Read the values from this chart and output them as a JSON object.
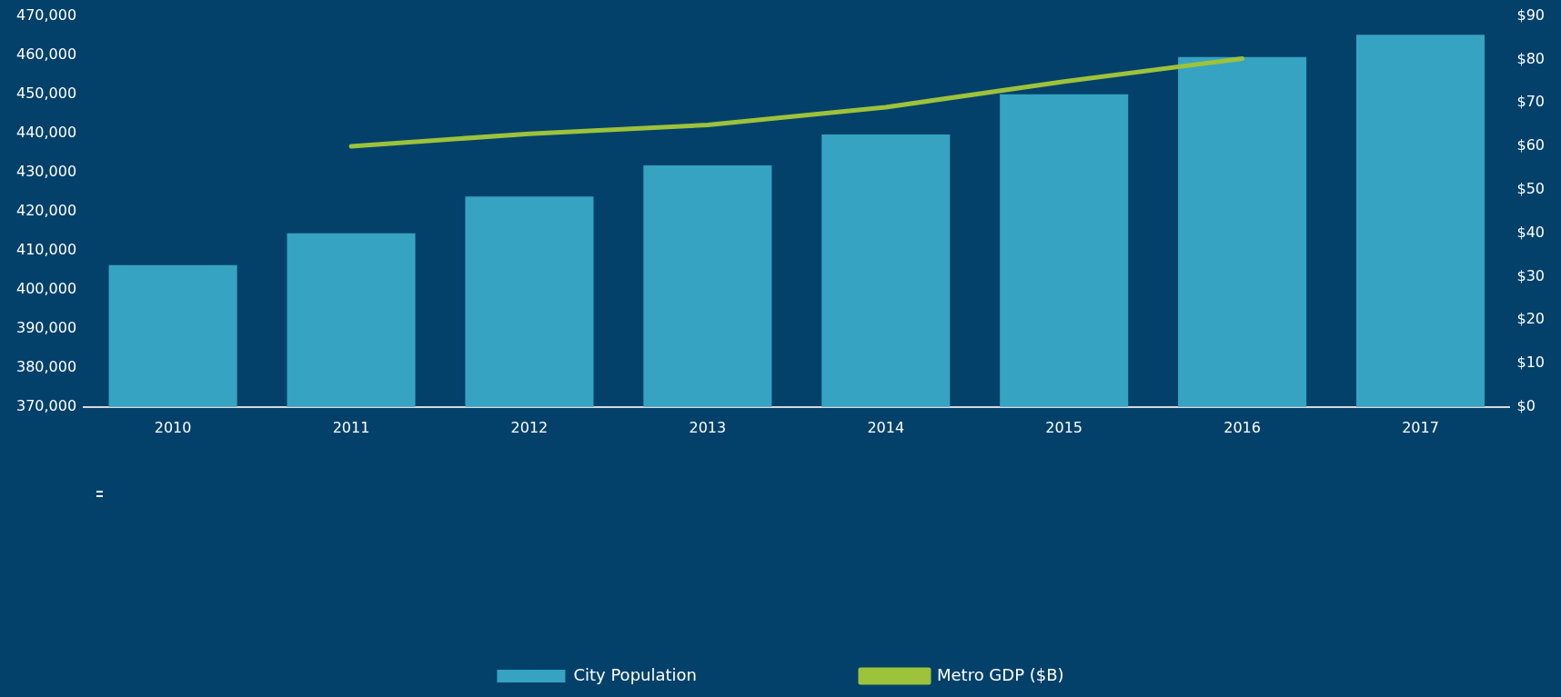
{
  "chart_data": {
    "type": "bar",
    "categories": [
      "2010",
      "2011",
      "2012",
      "2013",
      "2014",
      "2015",
      "2016",
      "2017"
    ],
    "series": [
      {
        "name": "City Population",
        "color": "#36a3c3",
        "values": [
          406300,
          414400,
          423800,
          431800,
          439700,
          450000,
          459500,
          465200
        ]
      },
      {
        "name": "Metro GDP ($B)",
        "type": "line",
        "axis": "y2",
        "color": "#9dc23b",
        "values": [
          null,
          60,
          62.9,
          64.9,
          69,
          74.9,
          80.2,
          null
        ]
      }
    ],
    "ylim": [
      370000,
      470000
    ],
    "yticks": [
      {
        "value": 370000,
        "label": "370,000"
      },
      {
        "value": 380000,
        "label": "380,000"
      },
      {
        "value": 390000,
        "label": "390,000"
      },
      {
        "value": 400000,
        "label": "400,000"
      },
      {
        "value": 410000,
        "label": "410,000"
      },
      {
        "value": 420000,
        "label": "420,000"
      },
      {
        "value": 430000,
        "label": "430,000"
      },
      {
        "value": 440000,
        "label": "440,000"
      },
      {
        "value": 450000,
        "label": "450,000"
      },
      {
        "value": 460000,
        "label": "460,000"
      },
      {
        "value": 470000,
        "label": "470,000"
      }
    ],
    "y2lim": [
      0,
      90
    ],
    "y2ticks": [
      {
        "value": 0,
        "label": "$0"
      },
      {
        "value": 10,
        "label": "$10"
      },
      {
        "value": 20,
        "label": "$20"
      },
      {
        "value": 30,
        "label": "$30"
      },
      {
        "value": 40,
        "label": "$40"
      },
      {
        "value": 50,
        "label": "$50"
      },
      {
        "value": 60,
        "label": "$60"
      },
      {
        "value": 70,
        "label": "$70"
      },
      {
        "value": 80,
        "label": "$80"
      },
      {
        "value": 90,
        "label": "$90"
      }
    ],
    "grid": false,
    "legend": "bottom",
    "marker": "none"
  }
}
